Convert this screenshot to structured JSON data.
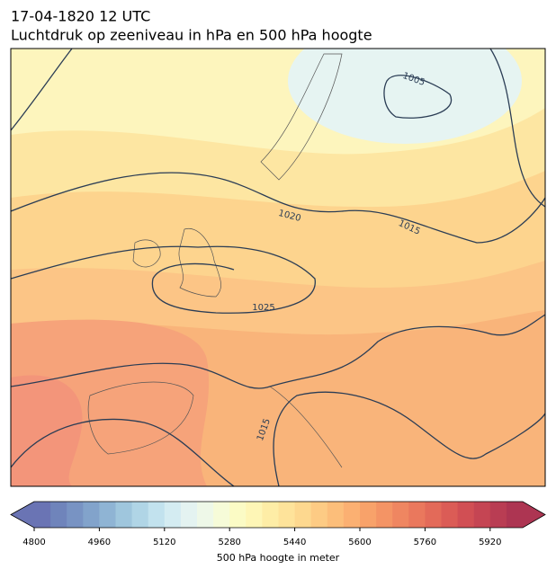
{
  "header": {
    "title": "17-04-1820 12 UTC",
    "subtitle": "Luchtdruk op zeeniveau in hPa en 500 hPa hoogte"
  },
  "map": {
    "contour_labels": [
      "1005",
      "1015",
      "1020",
      "1025",
      "1015"
    ]
  },
  "colorbar": {
    "label": "500 hPa hoogte in meter",
    "lim": [
      4800,
      6000
    ],
    "ticks": [
      4800,
      4960,
      5120,
      5280,
      5440,
      5600,
      5760,
      5920
    ],
    "colors": [
      "#6a74b4",
      "#6f84bb",
      "#7893c3",
      "#82a3cb",
      "#8fb4d4",
      "#9fc6dd",
      "#b0d5e6",
      "#c2e2ee",
      "#d4ecf2",
      "#e4f3f1",
      "#eef8e8",
      "#f6fbd8",
      "#fbfbc5",
      "#fef6b6",
      "#feeda6",
      "#fee39a",
      "#fdd88f",
      "#fdcb84",
      "#fcbe7a",
      "#fbb072",
      "#f8a26a",
      "#f49465",
      "#ef8661",
      "#ea785d",
      "#e36a59",
      "#db5c56",
      "#d14f54",
      "#c54553",
      "#b93d53",
      "#ad3552"
    ],
    "extend": "both"
  }
}
